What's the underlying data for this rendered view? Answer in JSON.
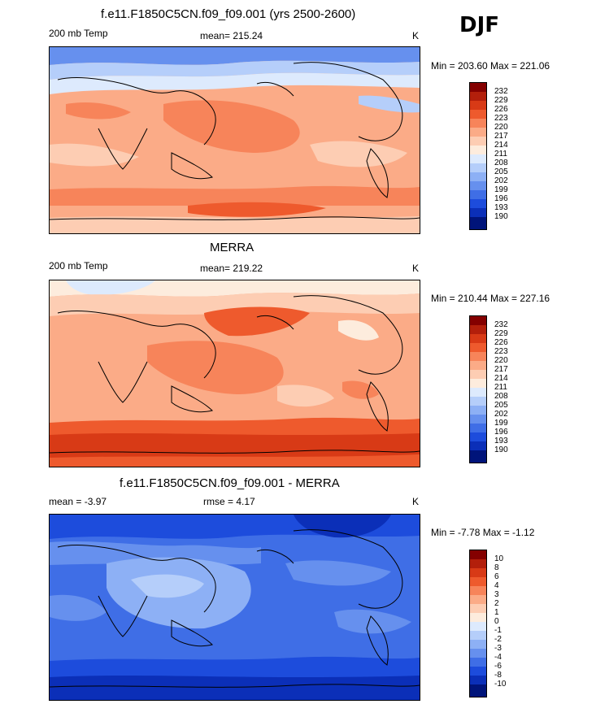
{
  "season": "DJF",
  "panels": [
    {
      "title": "f.e11.F1850C5CN.f09_f09.001 (yrs 2500-2600)",
      "left_label": "200 mb Temp",
      "center_label": "mean= 215.24",
      "right_label": "K",
      "minmax": "Min = 203.60 Max = 221.06",
      "colorbar_labels": [
        "232",
        "229",
        "226",
        "223",
        "220",
        "217",
        "214",
        "211",
        "208",
        "205",
        "202",
        "199",
        "196",
        "193",
        "190"
      ]
    },
    {
      "title": "MERRA",
      "left_label": "200 mb Temp",
      "center_label": "mean= 219.22",
      "right_label": "K",
      "minmax": "Min = 210.44 Max = 227.16",
      "colorbar_labels": [
        "232",
        "229",
        "226",
        "223",
        "220",
        "217",
        "214",
        "211",
        "208",
        "205",
        "202",
        "199",
        "196",
        "193",
        "190"
      ]
    },
    {
      "title": "f.e11.F1850C5CN.f09_f09.001 - MERRA",
      "left_label": "mean =  -3.97",
      "center_label": "rmse =   4.17",
      "right_label": "K",
      "minmax": "Min =  -7.78 Max =  -1.12",
      "colorbar_labels": [
        "10",
        "8",
        "6",
        "4",
        "3",
        "2",
        "1",
        "0",
        "-1",
        "-2",
        "-3",
        "-4",
        "-6",
        "-8",
        "-10"
      ]
    }
  ],
  "colors": {
    "scale": [
      "#840000",
      "#b31f0b",
      "#d83a16",
      "#ee5a2d",
      "#f7845a",
      "#fbab87",
      "#fdcdb3",
      "#fdecdd",
      "#ddeafd",
      "#b5cefa",
      "#8db0f5",
      "#6690ee",
      "#3f6ee6",
      "#1d4cdc",
      "#0b2fb8",
      "#00147a"
    ],
    "land": "#000000"
  }
}
